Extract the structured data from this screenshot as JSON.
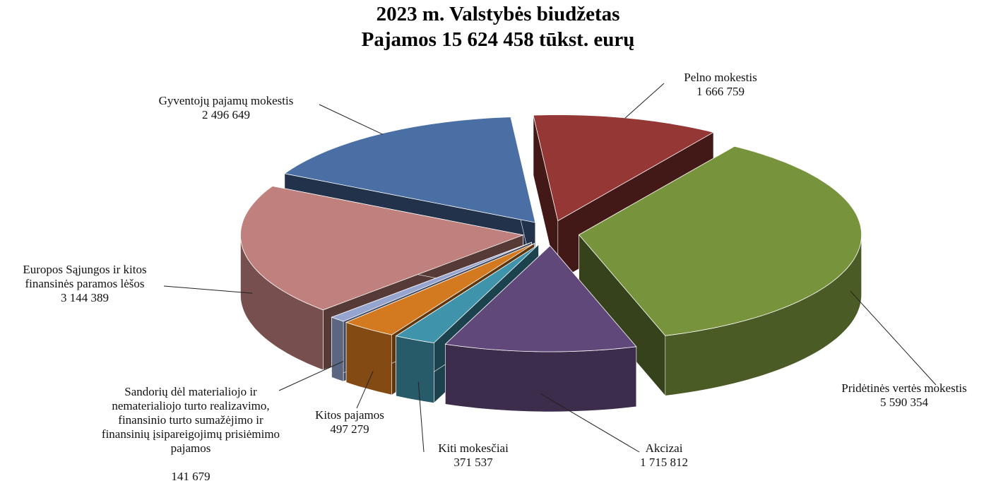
{
  "chart_data": {
    "type": "pie",
    "title": "2023 m. Valstybės biudžetas",
    "subtitle": "Pajamos 15 624 458 tūkst. eurų",
    "categories": [
      "Pelno mokestis",
      "Pridėtinės vertės mokestis",
      "Akcizai",
      "Kiti mokesčiai",
      "Kitos pajamos",
      "Sandorių dėl materialiojo ir nematerialiojo turto realizavimo, finansinio turto sumažėjimo ir finansinių įsipareigojimų prisiėmimo pajamos",
      "Europos Sąjungos ir kitos finansinės paramos lėšos",
      "Gyventojų pajamų mokestis"
    ],
    "values": [
      1666759,
      5590354,
      1715812,
      371537,
      497279,
      141679,
      3144389,
      2496649
    ],
    "value_labels": [
      "1 666 759",
      "5 590 354",
      "1 715 812",
      "371 537",
      "497 279",
      "141 679",
      "3 144 389",
      "2 496 649"
    ],
    "colors": [
      "#953735",
      "#77933c",
      "#60497a",
      "#3f93aa",
      "#d3791f",
      "#95a5d0",
      "#c0807d",
      "#4a6fa5"
    ]
  }
}
